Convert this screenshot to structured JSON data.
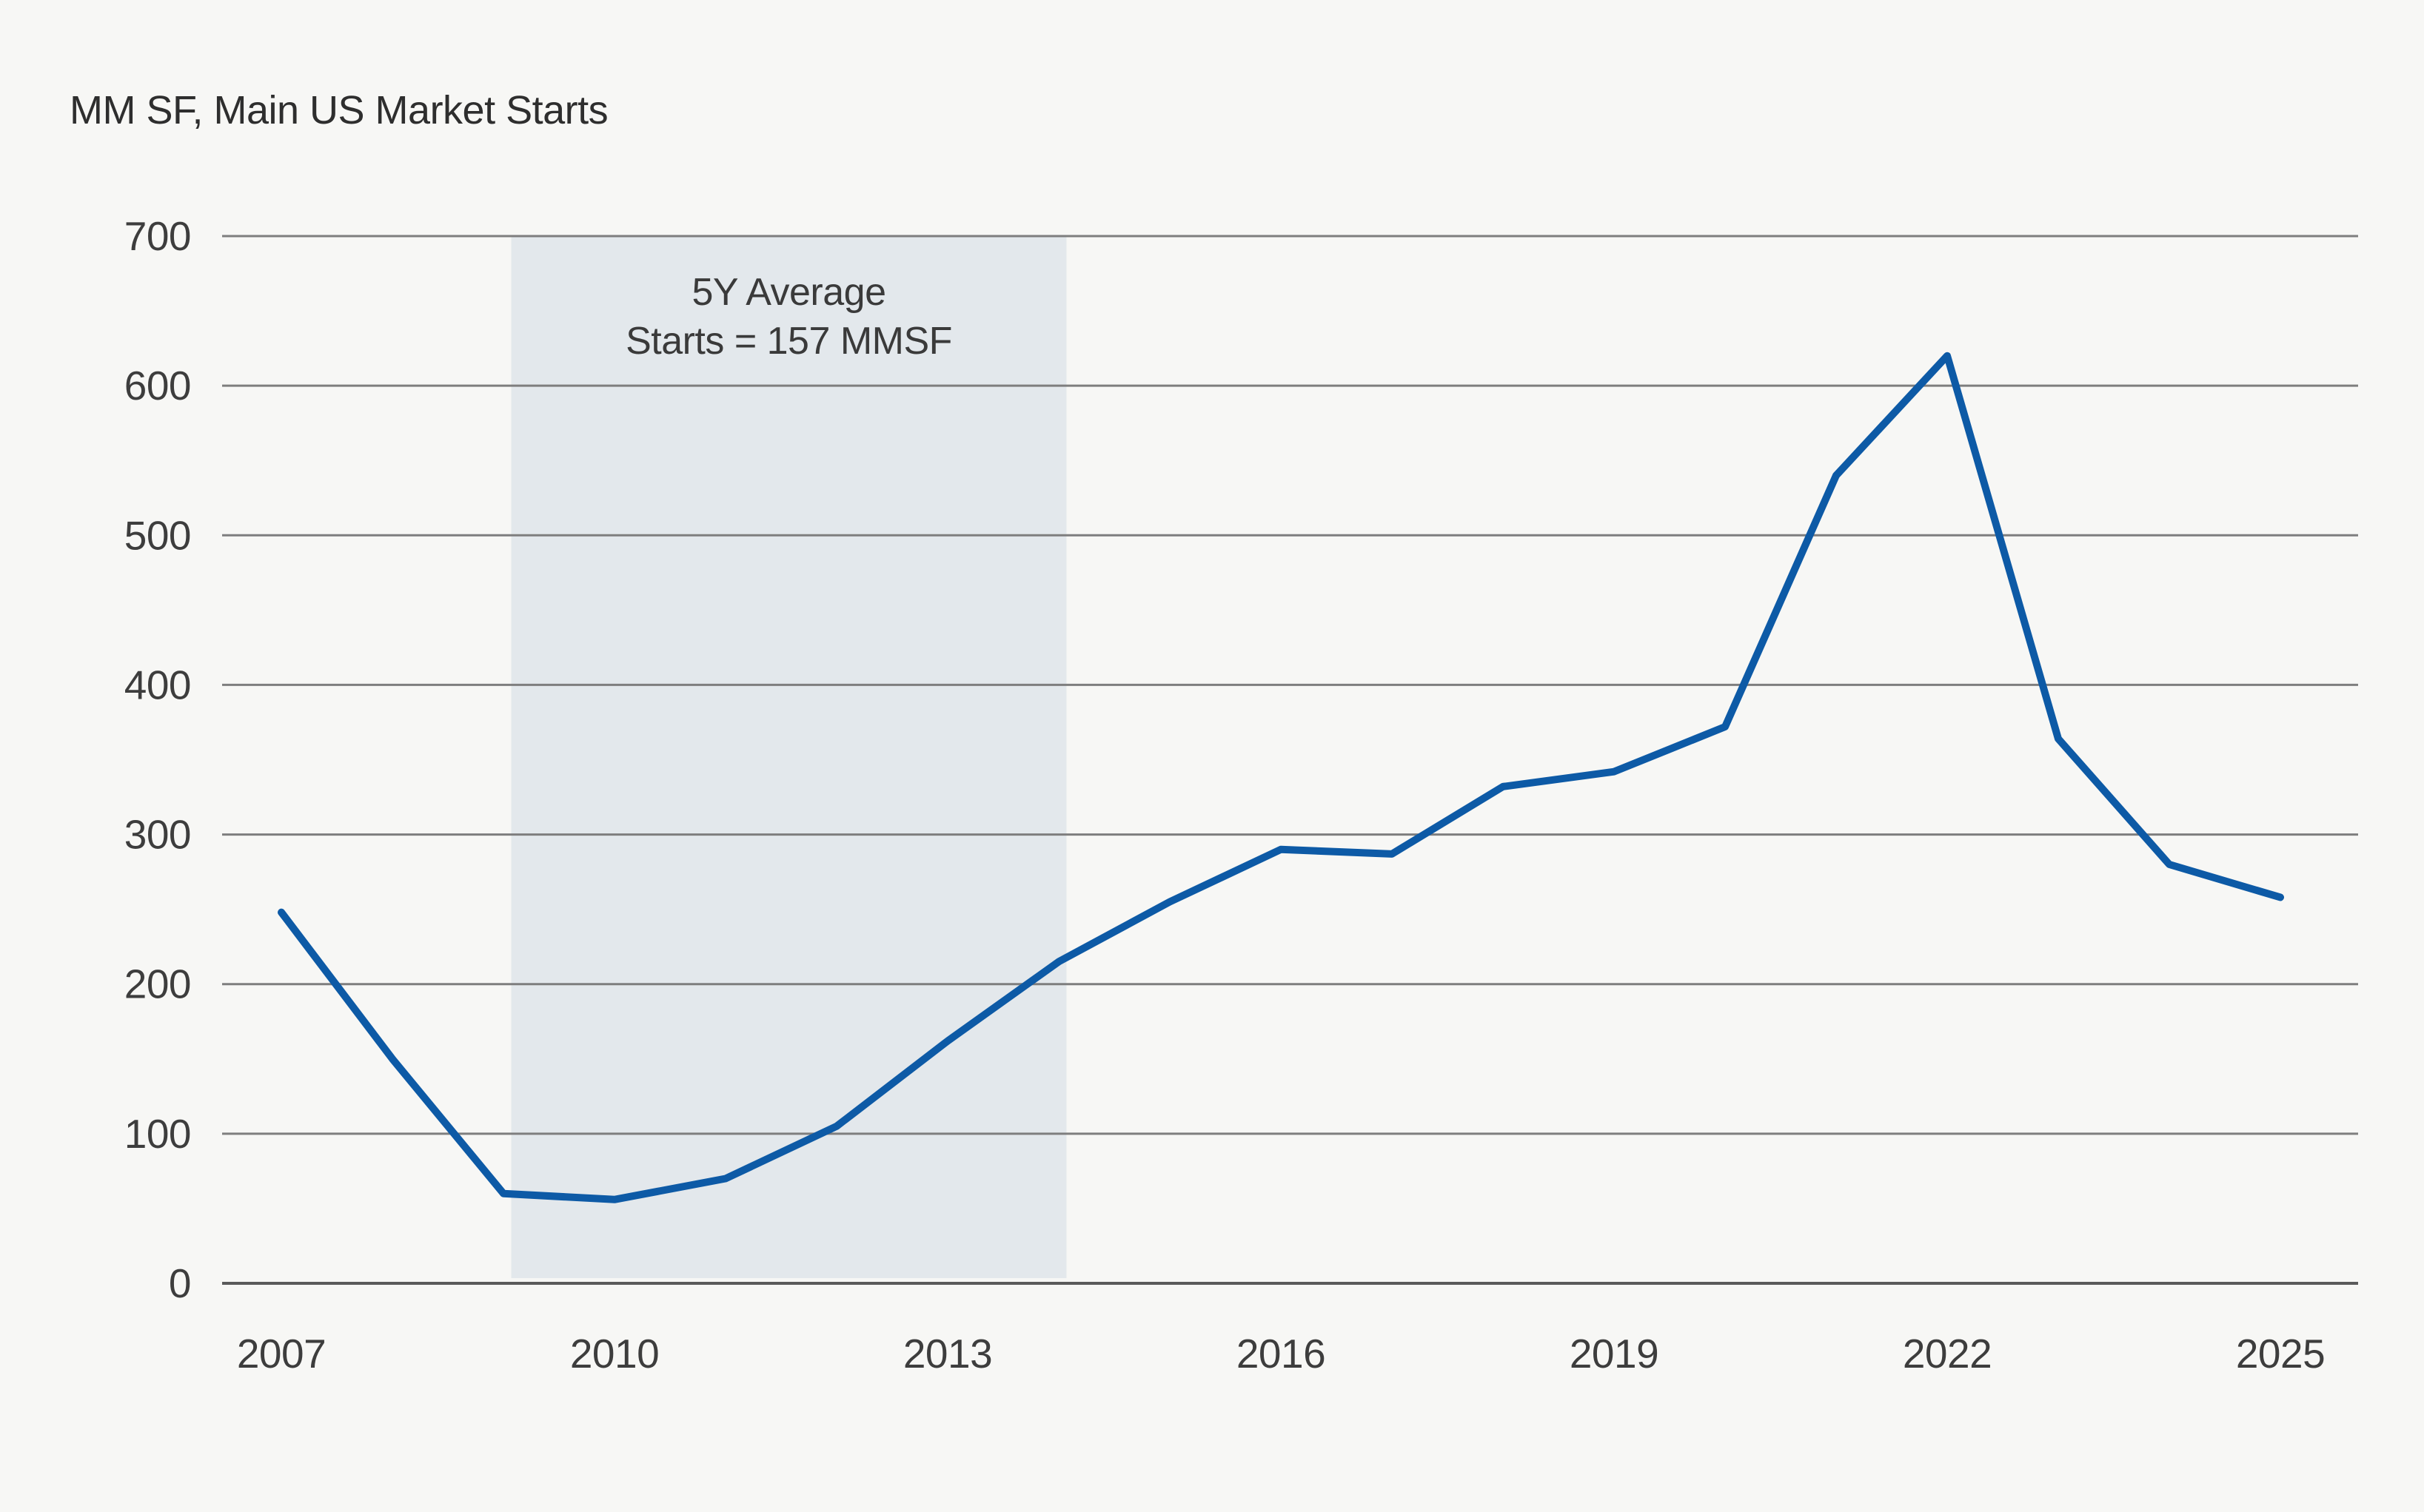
{
  "header": {
    "title": "MM SF, Main US Market Starts"
  },
  "chart_data": {
    "type": "line",
    "title": "MM SF, Main US Market Starts",
    "ylabel": "MM SF",
    "xlabel": "",
    "x": [
      2007,
      2008,
      2009,
      2010,
      2011,
      2012,
      2013,
      2014,
      2015,
      2016,
      2017,
      2018,
      2019,
      2020,
      2021,
      2022,
      2023,
      2024,
      2025
    ],
    "series": [
      {
        "name": "Main US Market Starts (MM SF)",
        "values": [
          248,
          150,
          60,
          56,
          70,
          105,
          162,
          215,
          255,
          290,
          287,
          332,
          342,
          372,
          540,
          620,
          364,
          280,
          258
        ]
      }
    ],
    "xticks": [
      2007,
      2010,
      2013,
      2016,
      2019,
      2022,
      2025
    ],
    "yticks": [
      0,
      100,
      200,
      300,
      400,
      500,
      600,
      700
    ],
    "ylim": [
      0,
      700
    ],
    "xlim": [
      2007,
      2025
    ],
    "grid": "horizontal",
    "legend": "none",
    "annotation_band": {
      "label_line1": "5Y Average",
      "label_line2": "Starts = 157 MMSF",
      "average_value": 157,
      "x_start": 2009.07,
      "x_end": 2014.07
    },
    "colors": {
      "background": "#F7F7F5",
      "line": "#0D5AA6",
      "band": "#E3E8EC",
      "gridline": "#7E7E7E",
      "axis": "#5A5A5A",
      "text": "#3D3D3D"
    }
  }
}
